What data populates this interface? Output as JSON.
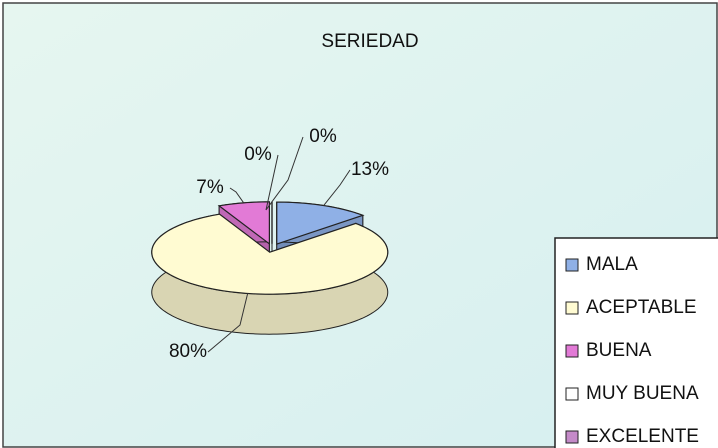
{
  "chart_data": {
    "type": "pie",
    "title": "SERIEDAD",
    "categories": [
      "MALA",
      "ACEPTABLE",
      "BUENA",
      "MUY BUENA",
      "EXCELENTE"
    ],
    "values": [
      13,
      80,
      7,
      0,
      0
    ],
    "value_labels": [
      "13%",
      "80%",
      "7%",
      "0%",
      "0%"
    ],
    "colors": [
      "#8fb0e6",
      "#fffbd2",
      "#e27ad6",
      "#ffffff",
      "#c48ac8"
    ]
  }
}
